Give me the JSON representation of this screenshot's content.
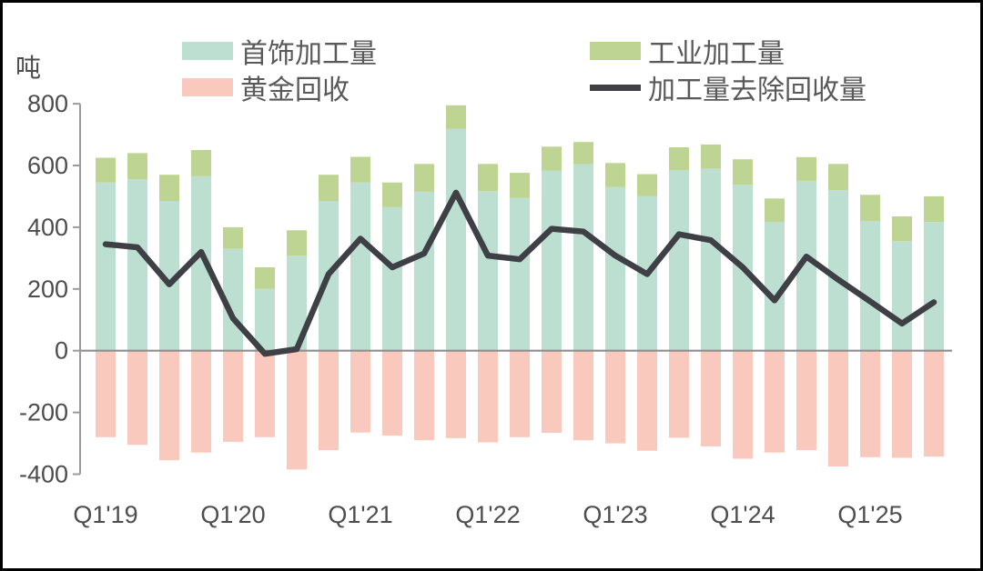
{
  "page": {
    "unit_label": "吨"
  },
  "legend": {
    "items": [
      {
        "label": "首饰加工量",
        "color": "#bcdfd2",
        "swatch": "box"
      },
      {
        "label": "工业加工量",
        "color": "#bdd492",
        "swatch": "box"
      },
      {
        "label": "黄金回收",
        "color": "#f9c9bd",
        "swatch": "box"
      },
      {
        "label": "加工量去除回收量",
        "color": "#3f4045",
        "swatch": "line"
      }
    ]
  },
  "chart_data": {
    "type": "bar",
    "stacked": true,
    "title": "",
    "ylabel": "吨",
    "xlabel": "",
    "ylim": [
      -400,
      800
    ],
    "grid": false,
    "legend_position": "top",
    "y_ticks": [
      800,
      600,
      400,
      200,
      0,
      -200,
      -400
    ],
    "x_tick_labels": [
      "Q1'19",
      "Q1'20",
      "Q1'21",
      "Q1'22",
      "Q1'23",
      "Q1'24",
      "Q1'25"
    ],
    "categories": [
      "Q1'19",
      "Q2'19",
      "Q3'19",
      "Q4'19",
      "Q1'20",
      "Q2'20",
      "Q3'20",
      "Q4'20",
      "Q1'21",
      "Q2'21",
      "Q3'21",
      "Q4'21",
      "Q1'22",
      "Q2'22",
      "Q3'22",
      "Q4'22",
      "Q1'23",
      "Q2'23",
      "Q3'23",
      "Q4'23",
      "Q1'24",
      "Q2'24",
      "Q3'24",
      "Q4'24",
      "Q1'25",
      "Q2'25",
      "Q3'25"
    ],
    "series": [
      {
        "name": "首饰加工量",
        "type": "bar",
        "color": "#bcdfd2",
        "values": [
          545,
          555,
          485,
          565,
          330,
          200,
          308,
          485,
          545,
          465,
          515,
          718,
          517,
          495,
          583,
          604,
          530,
          500,
          585,
          590,
          538,
          416,
          550,
          520,
          420,
          355,
          417
        ]
      },
      {
        "name": "工业加工量",
        "type": "bar",
        "color": "#bdd492",
        "values": [
          80,
          85,
          85,
          85,
          70,
          70,
          82,
          85,
          83,
          80,
          90,
          77,
          88,
          81,
          78,
          72,
          78,
          72,
          74,
          78,
          82,
          77,
          77,
          85,
          85,
          80,
          83
        ]
      },
      {
        "name": "黄金回收",
        "type": "bar",
        "color": "#f9c9bd",
        "values": [
          -280,
          -305,
          -355,
          -330,
          -295,
          -280,
          -385,
          -322,
          -265,
          -275,
          -290,
          -283,
          -297,
          -280,
          -266,
          -290,
          -300,
          -324,
          -282,
          -310,
          -350,
          -330,
          -322,
          -375,
          -345,
          -347,
          -343
        ]
      },
      {
        "name": "加工量去除回收量",
        "type": "line",
        "color": "#3f4045",
        "values": [
          345,
          335,
          215,
          320,
          105,
          -10,
          5,
          248,
          363,
          270,
          315,
          512,
          308,
          296,
          395,
          386,
          308,
          248,
          377,
          358,
          270,
          163,
          305,
          230,
          160,
          88,
          157
        ]
      }
    ]
  }
}
